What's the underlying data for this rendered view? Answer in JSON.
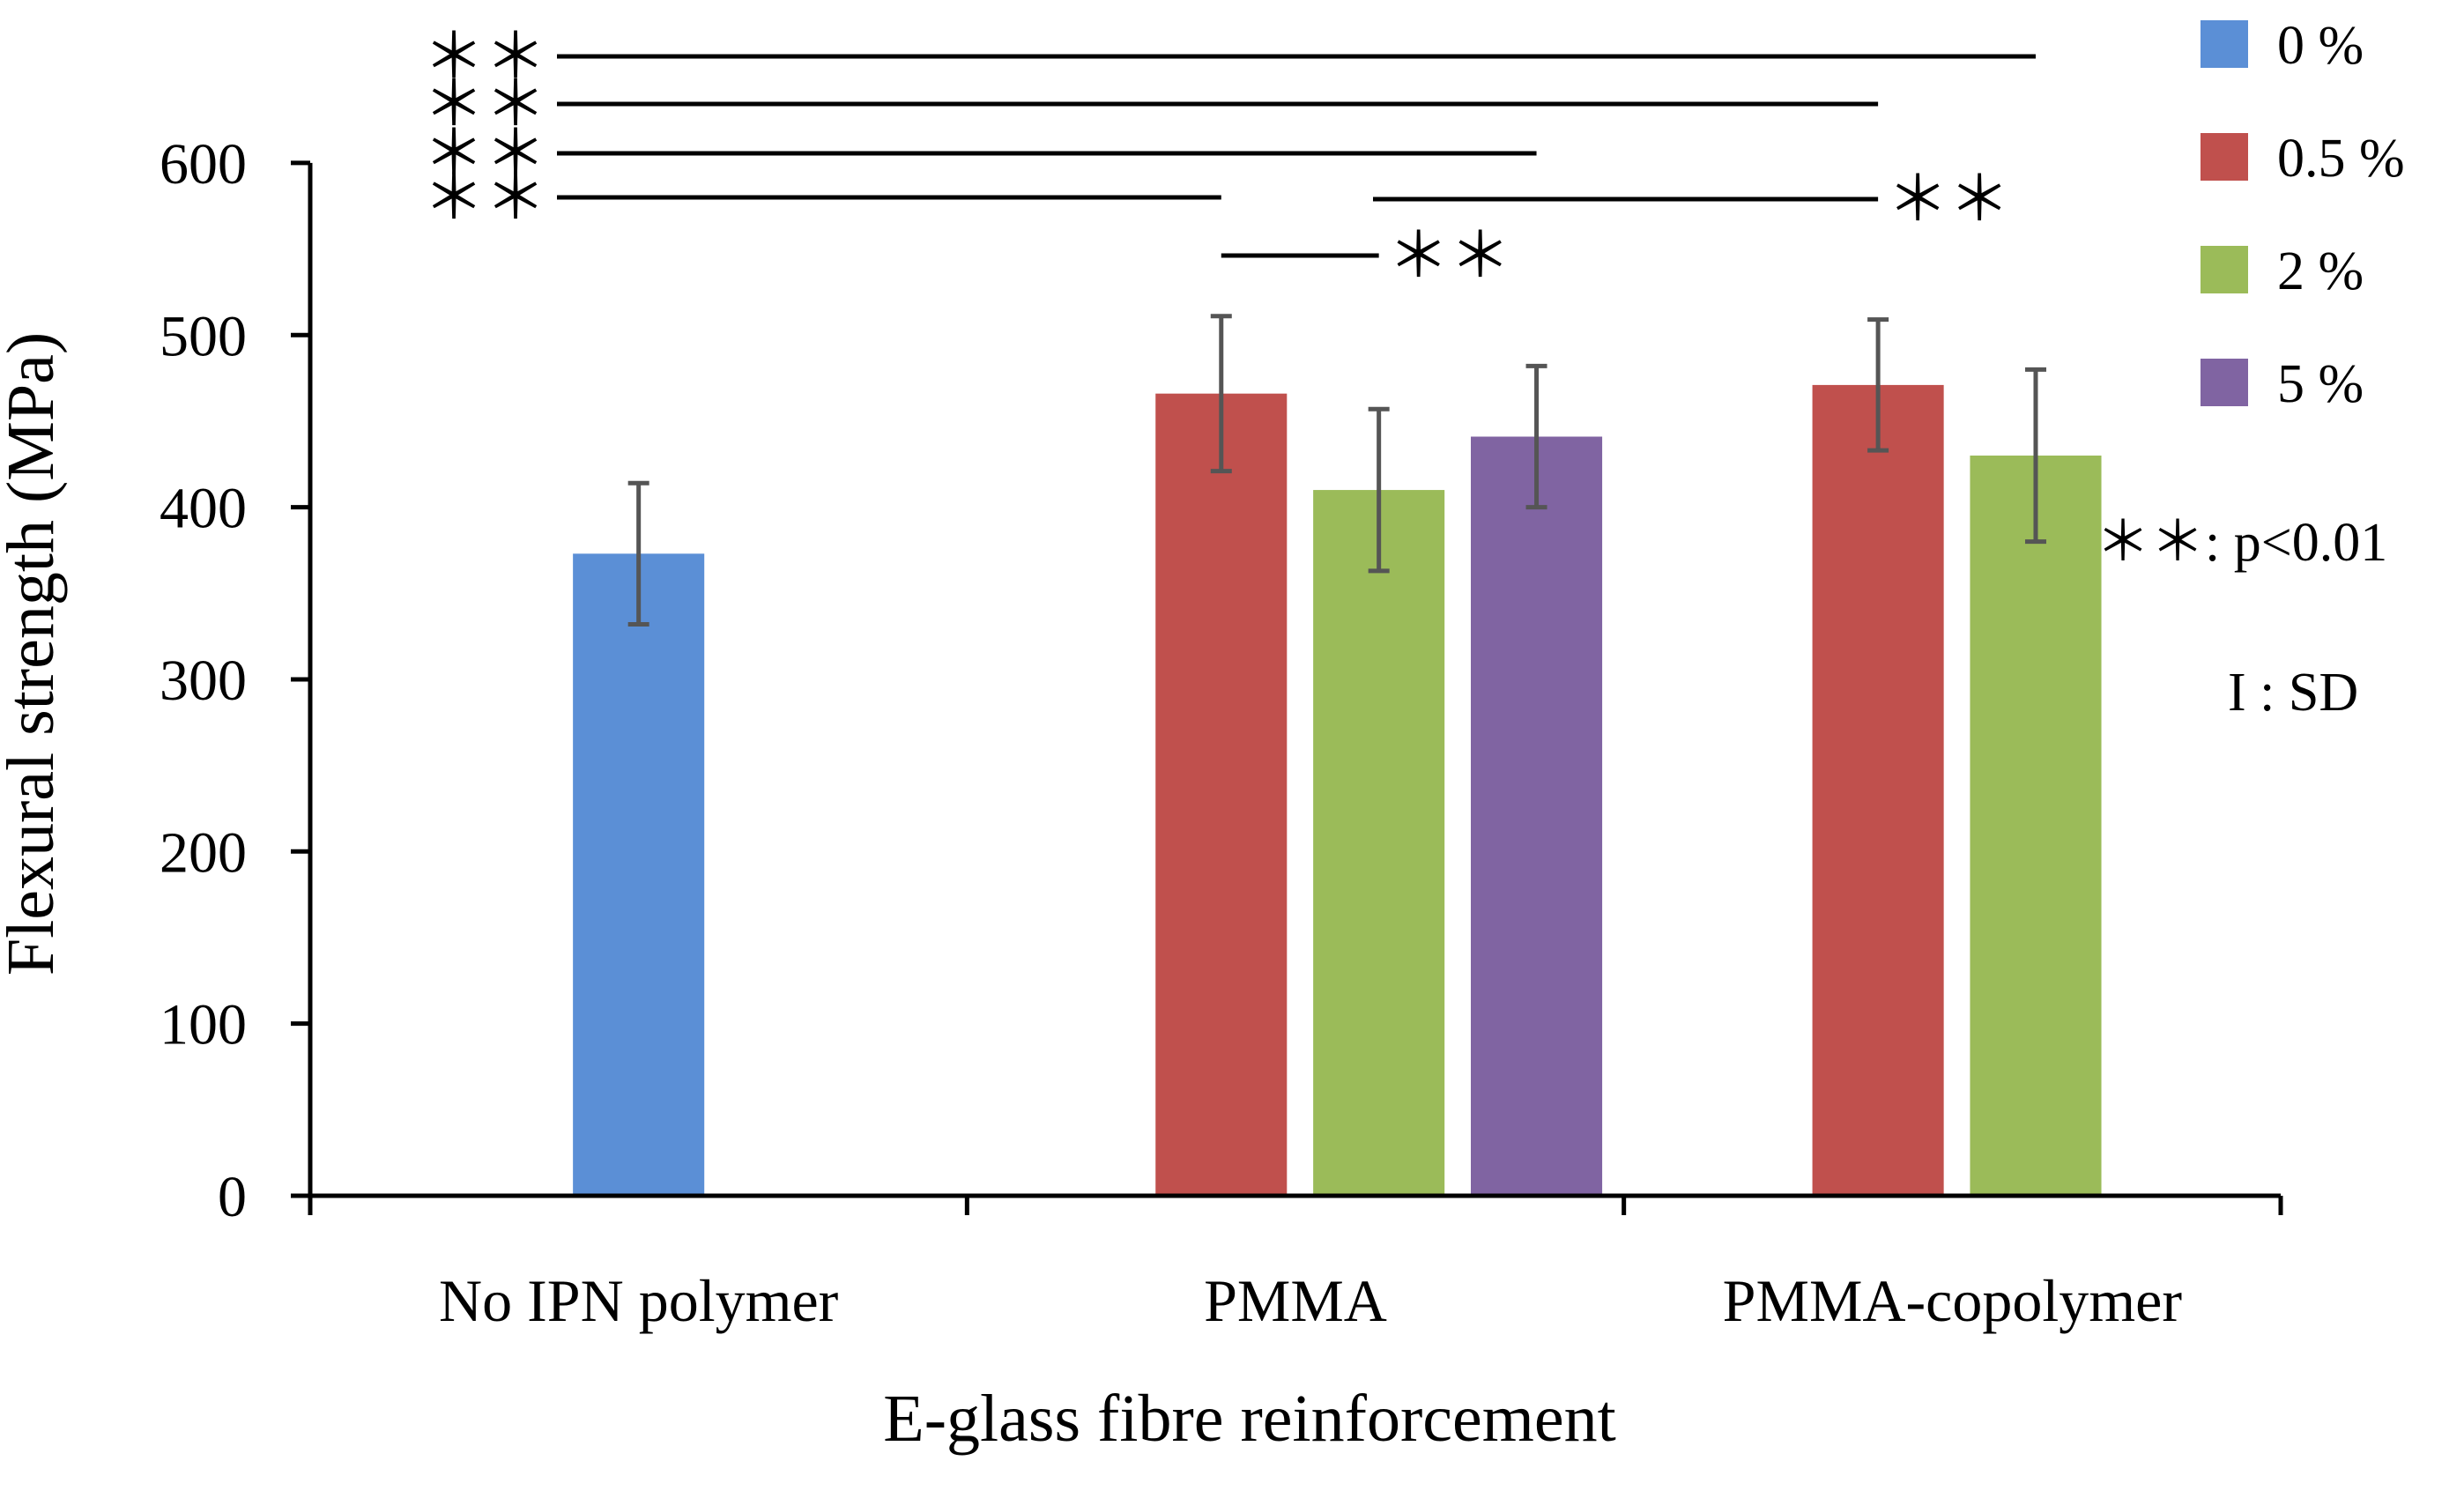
{
  "chart_data": {
    "type": "bar",
    "title": "",
    "xlabel": "E-glass  fibre  reinforcement",
    "ylabel": "Flexural  strength  (MPa)",
    "ylim": [
      0,
      600
    ],
    "yticks": [
      "0",
      "100",
      "200",
      "300",
      "400",
      "500",
      "600"
    ],
    "categories": [
      "No IPN polymer",
      "PMMA",
      "PMMA-copolymer"
    ],
    "series": [
      {
        "name": "0 %",
        "color": "#5B8FD6",
        "values": [
          373,
          null,
          null
        ],
        "sd": [
          41,
          null,
          null
        ]
      },
      {
        "name": "0.5 %",
        "color": "#C0504D",
        "values": [
          null,
          466,
          471
        ],
        "sd": [
          null,
          45,
          38
        ]
      },
      {
        "name": "2 %",
        "color": "#9BBB59",
        "values": [
          null,
          410,
          430
        ],
        "sd": [
          null,
          47,
          50
        ]
      },
      {
        "name": "5 %",
        "color": "#8064A2",
        "values": [
          null,
          441,
          null
        ],
        "sd": [
          null,
          41,
          null
        ]
      }
    ],
    "significance": [
      {
        "from": "No IPN polymer / 0 %",
        "to": "PMMA-copolymer / 2 %",
        "label": "＊＊"
      },
      {
        "from": "No IPN polymer / 0 %",
        "to": "PMMA-copolymer / 0.5 %",
        "label": "＊＊"
      },
      {
        "from": "No IPN polymer / 0 %",
        "to": "PMMA / 5 %",
        "label": "＊＊"
      },
      {
        "from": "No IPN polymer / 0 %",
        "to": "PMMA / 0.5 %",
        "label": "＊＊"
      },
      {
        "from": "PMMA / 2 %",
        "to": "PMMA-copolymer / 0.5 %",
        "label": "＊＊"
      },
      {
        "from": "PMMA / 0.5 %",
        "to": "PMMA / 2 %",
        "label": "＊＊"
      }
    ],
    "legend_position": "right",
    "notes": [
      "＊＊: p<0.01",
      "I : SD"
    ]
  }
}
